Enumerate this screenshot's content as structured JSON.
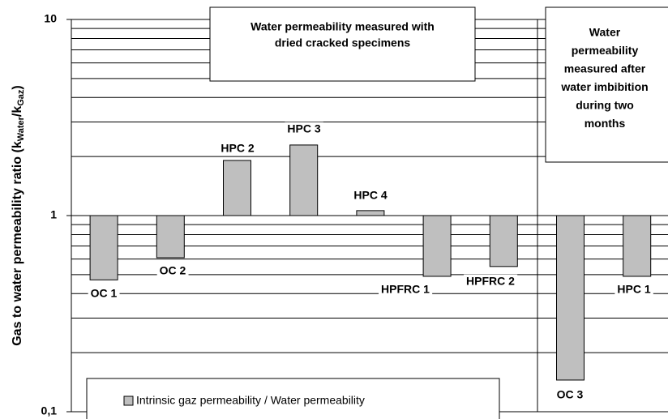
{
  "chart_data": {
    "type": "bar",
    "y_label": [
      "Gas to water permeability ratio (k",
      "Water",
      "/k",
      "Gaz",
      ")"
    ],
    "categories": [
      "OC 1",
      "OC 2",
      "HPC 2",
      "HPC 3",
      "HPC 4",
      "HPFRC 1",
      "HPFRC 2",
      "OC 3",
      "HPC 1"
    ],
    "values": [
      0.47,
      0.61,
      1.91,
      2.29,
      1.06,
      0.49,
      0.55,
      0.145,
      0.49
    ],
    "color": "#bfbfbf",
    "log_scale": true,
    "ylim": [
      0.1,
      10
    ],
    "yticks": [
      {
        "value": 0.1,
        "label": "0,1"
      },
      1,
      10
    ],
    "minor_yticks": [
      0.2,
      0.3,
      0.4,
      0.5,
      0.6,
      0.7,
      0.8,
      0.9,
      2,
      3,
      4,
      5,
      6,
      7,
      8,
      9
    ],
    "grid": true,
    "annotations": [
      [
        "Water permeability measured with",
        "dried cracked specimens"
      ],
      [
        "Water",
        "permeability",
        "measured after",
        "water imbibition",
        "during two",
        "months"
      ]
    ],
    "legend": [
      "Intrinsic gaz permeability / Water permeability"
    ]
  }
}
